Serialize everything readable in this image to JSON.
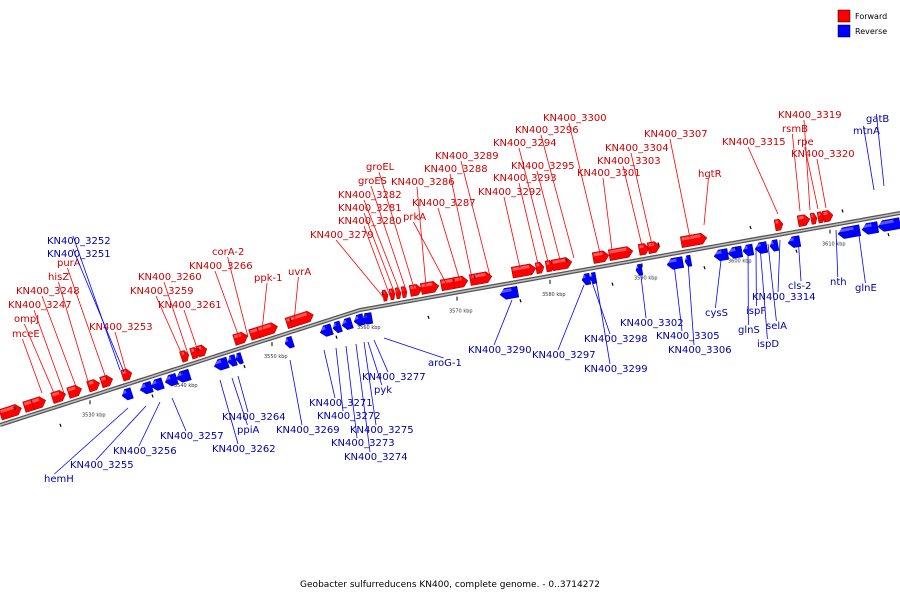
{
  "caption": "Geobacter sulfurreducens KN400, complete genome. - 0..3714272",
  "colors": {
    "forward": "#ff0000",
    "reverse": "#0000ff",
    "forward_text": "#cc0000",
    "reverse_text": "#0000aa",
    "axis": "#888888"
  },
  "legend": [
    {
      "label": "Forward",
      "color": "#ff0000"
    },
    {
      "label": "Reverse",
      "color": "#0000ff"
    }
  ],
  "axis_ticks": [
    "3530 kbp",
    "3540 kbp",
    "3550 kbp",
    "3560 kbp",
    "3570 kbp",
    "3580 kbp",
    "3590 kbp",
    "3600 kbp",
    "3610 kbp"
  ],
  "forward_labels": [
    "mceE",
    "ompJ",
    "KN400_3247",
    "KN400_3248",
    "hisZ",
    "purA",
    "KN400_3253",
    "KN400_3259",
    "KN400_3260",
    "KN400_3261",
    "KN400_3266",
    "corA-2",
    "ppk-1",
    "uvrA",
    "KN400_3279",
    "KN400_3280",
    "KN400_3281",
    "KN400_3282",
    "groES",
    "groEL",
    "KN400_3286",
    "prkA",
    "KN400_3287",
    "KN400_3288",
    "KN400_3289",
    "KN400_3292",
    "KN400_3293",
    "KN400_3294",
    "KN400_3295",
    "KN400_3296",
    "KN400_3300",
    "KN400_3301",
    "KN400_3303",
    "KN400_3304",
    "KN400_3307",
    "hgtR",
    "KN400_3315",
    "rsmB",
    "KN400_3319",
    "rpe",
    "KN400_3320"
  ],
  "reverse_labels": [
    "KN400_3252",
    "KN400_3251",
    "hemH",
    "KN400_3255",
    "KN400_3256",
    "KN400_3257",
    "KN400_3262",
    "ppiA",
    "KN400_3264",
    "KN400_3269",
    "KN400_3271",
    "KN400_3272",
    "KN400_3273",
    "KN400_3274",
    "KN400_3275",
    "pyk",
    "KN400_3277",
    "aroG-1",
    "KN400_3290",
    "KN400_3297",
    "KN400_3298",
    "KN400_3299",
    "KN400_3302",
    "KN400_3305",
    "KN400_3306",
    "cysS",
    "glnS",
    "ispF",
    "ispD",
    "selA",
    "KN400_3314",
    "cls-2",
    "nth",
    "glnE",
    "mtnA",
    "gatB"
  ]
}
